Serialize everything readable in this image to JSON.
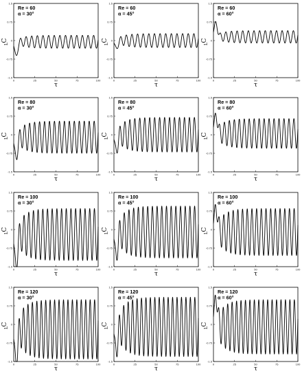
{
  "chart_data": [
    {
      "type": "line",
      "row": 0,
      "col": 0,
      "re_label": "Re = 60",
      "alpha_label": "α = 30°",
      "Re": 60,
      "alpha_deg": 30,
      "xlabel": "τ",
      "ylabel": "C",
      "ylabel_sub": "L",
      "xlim": [
        0,
        100
      ],
      "ylim": [
        -1.5,
        1.5
      ],
      "xticks": [
        "0",
        "25",
        "50",
        "75",
        "100"
      ],
      "yticks": [
        "1.5",
        "0.75",
        "0",
        "-0.75",
        "-1.5"
      ],
      "series": [
        {
          "amplitude": 0.26,
          "mean": -0.05,
          "periods": 15,
          "initial_dip": -0.6,
          "initial_peak": null
        }
      ]
    },
    {
      "type": "line",
      "row": 0,
      "col": 1,
      "re_label": "Re = 60",
      "alpha_label": "α = 45°",
      "Re": 60,
      "alpha_deg": 45,
      "xlabel": "τ",
      "ylabel": "C",
      "ylabel_sub": "L",
      "xlim": [
        0,
        100
      ],
      "ylim": [
        -1.5,
        1.5
      ],
      "xticks": [
        "0",
        "25",
        "50",
        "75",
        "100"
      ],
      "yticks": [
        "1.5",
        "0.75",
        "0",
        "-0.75",
        "-1.5"
      ],
      "series": [
        {
          "amplitude": 0.28,
          "mean": 0.0,
          "periods": 15,
          "initial_dip": -0.3,
          "initial_peak": null
        }
      ]
    },
    {
      "type": "line",
      "row": 0,
      "col": 2,
      "re_label": "Re = 60",
      "alpha_label": "α = 60°",
      "Re": 60,
      "alpha_deg": 60,
      "xlabel": "τ",
      "ylabel": "C",
      "ylabel_sub": "L",
      "xlim": [
        0,
        100
      ],
      "ylim": [
        -1.5,
        1.5
      ],
      "xticks": [
        "0",
        "25",
        "50",
        "75",
        "100"
      ],
      "yticks": [
        "1.5",
        "0.75",
        "0",
        "-0.75",
        "-1.5"
      ],
      "series": [
        {
          "amplitude": 0.25,
          "mean": 0.15,
          "periods": 15,
          "initial_dip": null,
          "initial_peak": 0.75
        }
      ]
    },
    {
      "type": "line",
      "row": 1,
      "col": 0,
      "re_label": "Re = 80",
      "alpha_label": "α = 30°",
      "Re": 80,
      "alpha_deg": 30,
      "xlabel": "τ",
      "ylabel": "C",
      "ylabel_sub": "L",
      "xlim": [
        0,
        100
      ],
      "ylim": [
        -1.5,
        1.5
      ],
      "xticks": [
        "0",
        "25",
        "50",
        "75",
        "100"
      ],
      "yticks": [
        "1.5",
        "0.75",
        "0",
        "-0.75",
        "-1.5"
      ],
      "series": [
        {
          "amplitude": 0.65,
          "mean": -0.1,
          "periods": 17,
          "initial_dip": -0.9,
          "initial_peak": null
        }
      ]
    },
    {
      "type": "line",
      "row": 1,
      "col": 1,
      "re_label": "Re = 80",
      "alpha_label": "α = 45°",
      "Re": 80,
      "alpha_deg": 45,
      "xlabel": "τ",
      "ylabel": "C",
      "ylabel_sub": "L",
      "xlim": [
        0,
        100
      ],
      "ylim": [
        -1.5,
        1.5
      ],
      "xticks": [
        "0",
        "25",
        "50",
        "75",
        "100"
      ],
      "yticks": [
        "1.5",
        "0.75",
        "0",
        "-0.75",
        "-1.5"
      ],
      "series": [
        {
          "amplitude": 0.7,
          "mean": 0.0,
          "periods": 17,
          "initial_dip": -0.6,
          "initial_peak": null
        }
      ]
    },
    {
      "type": "line",
      "row": 1,
      "col": 2,
      "re_label": "Re = 80",
      "alpha_label": "α = 60°",
      "Re": 80,
      "alpha_deg": 60,
      "xlabel": "τ",
      "ylabel": "C",
      "ylabel_sub": "L",
      "xlim": [
        0,
        100
      ],
      "ylim": [
        -1.5,
        1.5
      ],
      "xticks": [
        "0",
        "25",
        "50",
        "75",
        "100"
      ],
      "yticks": [
        "1.5",
        "0.75",
        "0",
        "-0.75",
        "-1.5"
      ],
      "series": [
        {
          "amplitude": 0.6,
          "mean": 0.05,
          "periods": 17,
          "initial_dip": null,
          "initial_peak": 0.85
        }
      ]
    },
    {
      "type": "line",
      "row": 2,
      "col": 0,
      "re_label": "Re = 100",
      "alpha_label": "α = 30°",
      "Re": 100,
      "alpha_deg": 30,
      "xlabel": "τ",
      "ylabel": "C",
      "ylabel_sub": "L",
      "xlim": [
        0,
        100
      ],
      "ylim": [
        -1.5,
        1.5
      ],
      "xticks": [
        "0",
        "25",
        "50",
        "75",
        "100"
      ],
      "yticks": [
        "1.5",
        "0.75",
        "0",
        "-0.75",
        "-1.5"
      ],
      "series": [
        {
          "amplitude": 1.05,
          "mean": -0.2,
          "periods": 18,
          "initial_dip": -1.4,
          "initial_peak": null
        }
      ]
    },
    {
      "type": "line",
      "row": 2,
      "col": 1,
      "re_label": "Re = 100",
      "alpha_label": "α = 45°",
      "Re": 100,
      "alpha_deg": 45,
      "xlabel": "τ",
      "ylabel": "C",
      "ylabel_sub": "L",
      "xlim": [
        0,
        100
      ],
      "ylim": [
        -1.5,
        1.5
      ],
      "xticks": [
        "0",
        "25",
        "50",
        "75",
        "100"
      ],
      "yticks": [
        "1.5",
        "0.75",
        "0",
        "-0.75",
        "-1.5"
      ],
      "series": [
        {
          "amplitude": 1.05,
          "mean": -0.1,
          "periods": 18,
          "initial_dip": -1.0,
          "initial_peak": null
        }
      ]
    },
    {
      "type": "line",
      "row": 2,
      "col": 2,
      "re_label": "Re = 100",
      "alpha_label": "α = 60°",
      "Re": 100,
      "alpha_deg": 60,
      "xlabel": "τ",
      "ylabel": "C",
      "ylabel_sub": "L",
      "xlim": [
        0,
        100
      ],
      "ylim": [
        -1.5,
        1.5
      ],
      "xticks": [
        "0",
        "25",
        "50",
        "75",
        "100"
      ],
      "yticks": [
        "1.5",
        "0.75",
        "0",
        "-0.75",
        "-1.5"
      ],
      "series": [
        {
          "amplitude": 0.95,
          "mean": -0.1,
          "periods": 18,
          "initial_dip": null,
          "initial_peak": 1.0
        }
      ]
    },
    {
      "type": "line",
      "row": 3,
      "col": 0,
      "re_label": "Re = 120",
      "alpha_label": "α = 30°",
      "Re": 120,
      "alpha_deg": 30,
      "xlabel": "τ",
      "ylabel": "C",
      "ylabel_sub": "L",
      "xlim": [
        0,
        100
      ],
      "ylim": [
        -1.5,
        1.5
      ],
      "xticks": [
        "0",
        "25",
        "50",
        "75",
        "100"
      ],
      "yticks": [
        "1.5",
        "0.75",
        "0",
        "-0.75",
        "-1.5"
      ],
      "series": [
        {
          "amplitude": 1.2,
          "mean": -0.2,
          "periods": 19,
          "initial_dip": -1.45,
          "initial_peak": null
        }
      ]
    },
    {
      "type": "line",
      "row": 3,
      "col": 1,
      "re_label": "Re = 120",
      "alpha_label": "α = 45°",
      "Re": 120,
      "alpha_deg": 45,
      "xlabel": "τ",
      "ylabel": "C",
      "ylabel_sub": "L",
      "xlim": [
        0,
        100
      ],
      "ylim": [
        -1.5,
        1.5
      ],
      "xticks": [
        "0",
        "25",
        "50",
        "75",
        "100"
      ],
      "yticks": [
        "1.5",
        "0.75",
        "0",
        "-0.75",
        "-1.5"
      ],
      "series": [
        {
          "amplitude": 1.2,
          "mean": -0.1,
          "periods": 19,
          "initial_dip": -1.0,
          "initial_peak": null
        }
      ]
    },
    {
      "type": "line",
      "row": 3,
      "col": 2,
      "re_label": "Re = 120",
      "alpha_label": "α = 60°",
      "Re": 120,
      "alpha_deg": 60,
      "xlabel": "τ",
      "ylabel": "C",
      "ylabel_sub": "L",
      "xlim": [
        0,
        100
      ],
      "ylim": [
        -1.5,
        1.5
      ],
      "xticks": [
        "0",
        "25",
        "50",
        "75",
        "100"
      ],
      "yticks": [
        "1.5",
        "0.75",
        "0",
        "-0.75",
        "-1.5"
      ],
      "series": [
        {
          "amplitude": 1.1,
          "mean": -0.1,
          "periods": 19,
          "initial_dip": null,
          "initial_peak": 1.2
        }
      ]
    }
  ],
  "colors": {
    "line": "#000000",
    "axis": "#000000",
    "background": "#ffffff"
  }
}
